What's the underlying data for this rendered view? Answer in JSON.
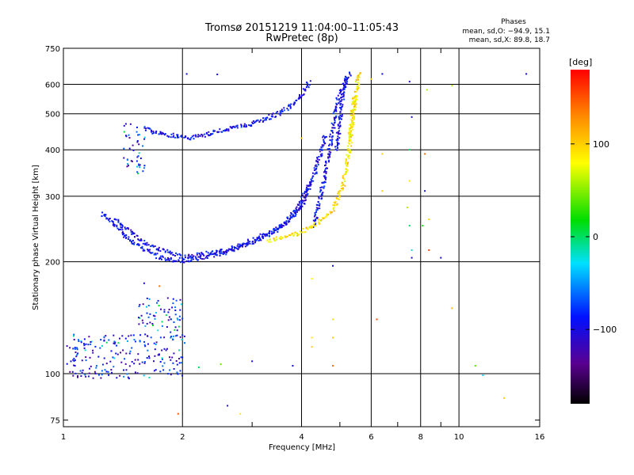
{
  "chart_data": {
    "type": "scatter",
    "title": "Tromsø 20151219 11:04:00–11:05:43",
    "subtitle": "RwPretec (8p)",
    "stats": {
      "title": "Phases",
      "line1": "mean, sd,O: −94.9, 15.1",
      "line2": "mean, sd,X: 89.8, 18.7"
    },
    "xlabel": "Frequency [MHz]",
    "ylabel": "Stationary phase Virtual Height [km]",
    "xscale": "log",
    "yscale": "log",
    "xlim": [
      1,
      16
    ],
    "ylim": [
      72,
      750
    ],
    "x_ticks": [
      1,
      2,
      4,
      6,
      8,
      10,
      16
    ],
    "x_tick_labels": [
      "1",
      "2",
      "4",
      "6",
      "8",
      "10",
      "16"
    ],
    "x_minor": [
      3,
      5,
      7,
      9
    ],
    "y_ticks": [
      75,
      100,
      200,
      300,
      400,
      500,
      600,
      750
    ],
    "y_tick_labels": [
      "75",
      "100",
      "200",
      "300",
      "400",
      "500",
      "600",
      "750"
    ],
    "grid": true,
    "colorbar": {
      "label": "[deg]",
      "range": [
        -180,
        180
      ],
      "tick_labels": [
        {
          "value": 100,
          "text": "100"
        },
        {
          "value": 0,
          "text": "0"
        },
        {
          "value": -100,
          "text": "−100"
        }
      ],
      "colormap": "rainbow (black → purple → blue → cyan → green → yellow → orange → red)"
    },
    "series": [
      {
        "phase_deg": -95,
        "traces": [
          {
            "shape": "arc",
            "x": [
              1.25,
              1.5,
              1.75,
              2.0,
              2.5,
              3.0,
              3.5,
              4.0,
              4.3,
              4.6
            ],
            "y": [
              270,
              225,
              205,
              200,
              210,
              225,
              245,
              280,
              340,
              440
            ]
          },
          {
            "shape": "arc",
            "x": [
              1.35,
              1.6,
              2.0,
              2.6,
              3.2,
              3.6,
              4.0,
              4.2
            ],
            "y": [
              260,
              225,
              205,
              215,
              235,
              250,
              290,
              330
            ]
          },
          {
            "shape": "arc",
            "x": [
              1.6,
              1.8,
              2.1,
              2.5,
              3.0,
              3.5,
              3.8,
              4.0,
              4.2
            ],
            "y": [
              455,
              440,
              430,
              450,
              470,
              500,
              530,
              560,
              610
            ]
          },
          {
            "shape": "arc",
            "x": [
              4.3,
              4.4,
              4.55,
              4.7,
              4.8,
              4.9,
              5.0,
              5.1,
              5.2
            ],
            "y": [
              250,
              280,
              330,
              400,
              460,
              520,
              570,
              600,
              630
            ]
          },
          {
            "shape": "arc",
            "x": [
              4.9,
              5.0,
              5.05,
              5.1,
              5.2,
              5.3
            ],
            "y": [
              400,
              470,
              530,
              580,
              620,
              645
            ]
          },
          {
            "shape": "blob",
            "x": [
              1.02,
              2.03
            ],
            "y": [
              97,
              128
            ]
          },
          {
            "shape": "blob",
            "x": [
              1.42,
              1.62
            ],
            "y": [
              340,
              470
            ]
          },
          {
            "shape": "blob",
            "x": [
              1.55,
              2.0
            ],
            "y": [
              125,
              160
            ]
          }
        ]
      },
      {
        "phase_deg": 90,
        "traces": [
          {
            "shape": "arc",
            "x": [
              3.3,
              3.6,
              4.0,
              4.4,
              4.8,
              5.1,
              5.3,
              5.45
            ],
            "y": [
              228,
              232,
              240,
              255,
              275,
              320,
              420,
              560
            ]
          },
          {
            "shape": "arc",
            "x": [
              5.3,
              5.4,
              5.5,
              5.55,
              5.6
            ],
            "y": [
              430,
              500,
              560,
              610,
              650
            ]
          }
        ]
      }
    ]
  }
}
